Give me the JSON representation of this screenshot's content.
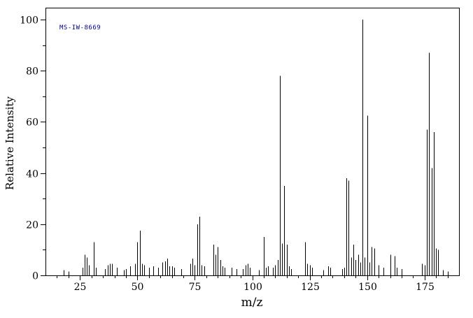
{
  "chart_data": {
    "type": "bar",
    "subtype": "mass-spectrum-stick",
    "title": "",
    "annotation": "MS-IW-8669",
    "xlabel": "m/z",
    "ylabel": "Relative Intensity",
    "xlim": [
      10,
      190
    ],
    "ylim": [
      0,
      100
    ],
    "x_ticks": [
      25,
      50,
      75,
      100,
      125,
      150,
      175
    ],
    "x_minor_tick_step": 5,
    "y_ticks": [
      0,
      20,
      40,
      60,
      80,
      100
    ],
    "y_minor_tick_step": 10,
    "grid": false,
    "legend": false,
    "colors": {
      "peak": "#000000",
      "axis": "#000000",
      "tick_label": "#000000",
      "annotation": "#00008B",
      "background": "#ffffff"
    },
    "peaks": [
      [
        18,
        2
      ],
      [
        20,
        1.5
      ],
      [
        26,
        3
      ],
      [
        27,
        8
      ],
      [
        28,
        7
      ],
      [
        29,
        4
      ],
      [
        31,
        13
      ],
      [
        32,
        3
      ],
      [
        36,
        2.5
      ],
      [
        37,
        4
      ],
      [
        38,
        4.5
      ],
      [
        39,
        4.5
      ],
      [
        41,
        3
      ],
      [
        44,
        2
      ],
      [
        45,
        2.5
      ],
      [
        47,
        3.5
      ],
      [
        49,
        4.5
      ],
      [
        50,
        13
      ],
      [
        51,
        17.5
      ],
      [
        52,
        4.5
      ],
      [
        53,
        4
      ],
      [
        55,
        3
      ],
      [
        57,
        3.5
      ],
      [
        59,
        3
      ],
      [
        61,
        5
      ],
      [
        62,
        5.5
      ],
      [
        63,
        6.5
      ],
      [
        64,
        3.5
      ],
      [
        65,
        3.5
      ],
      [
        66,
        3
      ],
      [
        69,
        2.5
      ],
      [
        73,
        4.5
      ],
      [
        74,
        6.5
      ],
      [
        75,
        4
      ],
      [
        76,
        20
      ],
      [
        77,
        23
      ],
      [
        78,
        4
      ],
      [
        79,
        3.5
      ],
      [
        83,
        12
      ],
      [
        84,
        8
      ],
      [
        85,
        11
      ],
      [
        86,
        6
      ],
      [
        87,
        3.5
      ],
      [
        88,
        3
      ],
      [
        91,
        3
      ],
      [
        93,
        2.5
      ],
      [
        96,
        2.5
      ],
      [
        97,
        4
      ],
      [
        98,
        4.5
      ],
      [
        99,
        3
      ],
      [
        103,
        2
      ],
      [
        105,
        15
      ],
      [
        106,
        3
      ],
      [
        107,
        3.5
      ],
      [
        109,
        3
      ],
      [
        110,
        4
      ],
      [
        111,
        6
      ],
      [
        112,
        78
      ],
      [
        113,
        12.5
      ],
      [
        114,
        35
      ],
      [
        115,
        12
      ],
      [
        116,
        3.5
      ],
      [
        117,
        2.5
      ],
      [
        123,
        13
      ],
      [
        124,
        4.5
      ],
      [
        125,
        4
      ],
      [
        126,
        3
      ],
      [
        131,
        2
      ],
      [
        133,
        3.5
      ],
      [
        134,
        3
      ],
      [
        139,
        2.5
      ],
      [
        140,
        3
      ],
      [
        141,
        38
      ],
      [
        142,
        37
      ],
      [
        143,
        7
      ],
      [
        144,
        12
      ],
      [
        145,
        6
      ],
      [
        146,
        8
      ],
      [
        147,
        5
      ],
      [
        148,
        100
      ],
      [
        149,
        7
      ],
      [
        150,
        62.5
      ],
      [
        151,
        5
      ],
      [
        152,
        11
      ],
      [
        153,
        10.5
      ],
      [
        155,
        4
      ],
      [
        157,
        3
      ],
      [
        160,
        8
      ],
      [
        162,
        7.5
      ],
      [
        163,
        3
      ],
      [
        165,
        2.5
      ],
      [
        174,
        4.5
      ],
      [
        175,
        4
      ],
      [
        176,
        57
      ],
      [
        177,
        87
      ],
      [
        178,
        42
      ],
      [
        179,
        56
      ],
      [
        180,
        10.5
      ],
      [
        181,
        10
      ],
      [
        183,
        2
      ],
      [
        185,
        1.5
      ]
    ]
  }
}
